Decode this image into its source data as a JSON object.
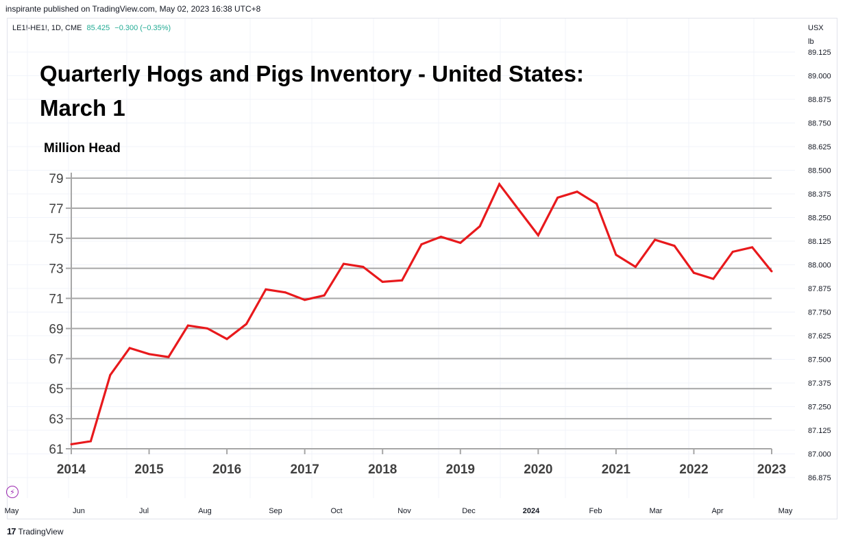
{
  "header": {
    "published_by": "inspirante published on TradingView.com, May 02, 2023 16:38 UTC+8"
  },
  "legend": {
    "symbol": "LE1!-HE1!, 1D, CME",
    "price": "85.425",
    "change": "−0.300 (−0.35%)"
  },
  "price_scale": {
    "currency": "USX",
    "unit": "lb",
    "labels": [
      "89.125",
      "89.000",
      "88.875",
      "88.750",
      "88.625",
      "88.500",
      "88.375",
      "88.250",
      "88.125",
      "88.000",
      "87.875",
      "87.750",
      "87.625",
      "87.500",
      "87.375",
      "87.250",
      "87.125",
      "87.000",
      "86.875"
    ]
  },
  "time_scale": {
    "labels": [
      "May",
      "Jun",
      "Jul",
      "Aug",
      "Sep",
      "Oct",
      "Nov",
      "Dec",
      "2024",
      "Feb",
      "Mar",
      "Apr",
      "May"
    ]
  },
  "footer": {
    "brand": "TradingView",
    "brand_mark": "17"
  },
  "colors": {
    "line": "#e8191c",
    "grid": "#a6a6a6",
    "positive": "#22ab94",
    "pane_grid": "#f0f3fa"
  },
  "chart_data": {
    "type": "line",
    "title": "Quarterly Hogs and Pigs Inventory - United States: March 1",
    "title_lines": [
      "Quarterly Hogs and Pigs Inventory - United States:",
      "March 1"
    ],
    "ylabel": "Million Head",
    "xlabel": "",
    "ylim": [
      61,
      79
    ],
    "yticks": [
      61,
      63,
      65,
      67,
      69,
      71,
      73,
      75,
      77,
      79
    ],
    "xticks": [
      "2014",
      "2015",
      "2016",
      "2017",
      "2018",
      "2019",
      "2020",
      "2021",
      "2022",
      "2023"
    ],
    "x": [
      2014.0,
      2014.25,
      2014.5,
      2014.75,
      2015.0,
      2015.25,
      2015.5,
      2015.75,
      2016.0,
      2016.25,
      2016.5,
      2016.75,
      2017.0,
      2017.25,
      2017.5,
      2017.75,
      2018.0,
      2018.25,
      2018.5,
      2018.75,
      2019.0,
      2019.25,
      2019.5,
      2019.75,
      2020.0,
      2020.25,
      2020.5,
      2020.75,
      2021.0,
      2021.25,
      2021.5,
      2021.75,
      2022.0,
      2022.25,
      2022.5,
      2022.75,
      2023.0
    ],
    "series": [
      {
        "values": [
          61.3,
          61.5,
          65.9,
          67.7,
          67.3,
          67.1,
          69.2,
          69.0,
          68.3,
          69.3,
          71.6,
          71.4,
          70.9,
          71.2,
          73.3,
          73.1,
          72.1,
          72.2,
          74.6,
          75.1,
          74.7,
          75.8,
          78.6,
          76.9,
          75.2,
          77.7,
          78.1,
          77.3,
          73.9,
          73.1,
          74.9,
          74.5,
          72.7,
          72.3,
          74.1,
          74.4,
          72.8
        ]
      }
    ],
    "grid": true
  }
}
